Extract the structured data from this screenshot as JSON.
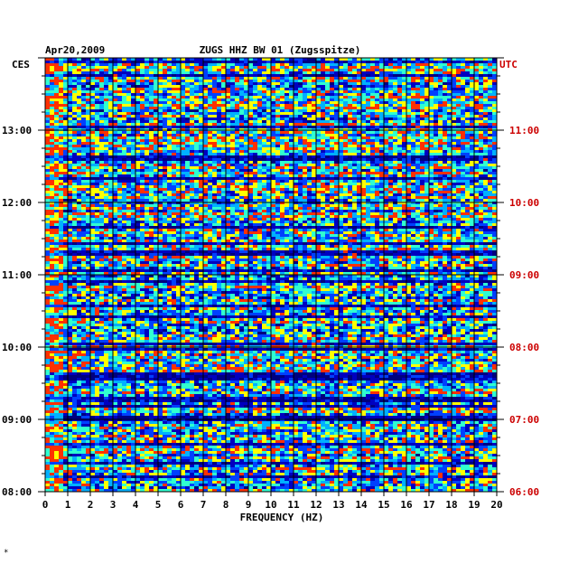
{
  "header": {
    "date": "Apr20,2009",
    "station": "ZUGS HHZ BW 01 (Zugsspitze)",
    "left_zone": "CES",
    "right_zone": "UTC"
  },
  "footer": {
    "mark": "*"
  },
  "colors": {
    "background": "#ffffff",
    "plot_base": "#00007f",
    "grid": "#000000",
    "left_axis_text": "#000000",
    "right_axis_text": "#cc0000",
    "colormap": [
      "#000070",
      "#0000c0",
      "#0040ff",
      "#00b0ff",
      "#30ffd0",
      "#ffff00",
      "#ff3000"
    ]
  },
  "chart_data": {
    "type": "heatmap",
    "title": "ZUGS HHZ BW 01 (Zugsspitze)",
    "xlabel": "FREQUENCY (HZ)",
    "xlim": [
      0,
      20
    ],
    "x_ticks": [
      "0",
      "1",
      "2",
      "3",
      "4",
      "5",
      "6",
      "7",
      "8",
      "9",
      "10",
      "11",
      "12",
      "13",
      "14",
      "15",
      "16",
      "17",
      "18",
      "19",
      "20"
    ],
    "y_time_range_ces": [
      "08:00",
      "14:00"
    ],
    "y_ticks_left": [
      {
        "value": 13,
        "label": "13:00"
      },
      {
        "value": 12,
        "label": "12:00"
      },
      {
        "value": 11,
        "label": "11:00"
      },
      {
        "value": 10,
        "label": "10:00"
      },
      {
        "value": 9,
        "label": "09:00"
      },
      {
        "value": 8,
        "label": "08:00"
      }
    ],
    "y_ticks_right": [
      {
        "value": 13,
        "label": "11:00"
      },
      {
        "value": 12,
        "label": "10:00"
      },
      {
        "value": 11,
        "label": "09:00"
      },
      {
        "value": 10,
        "label": "08:00"
      },
      {
        "value": 9,
        "label": "07:00"
      },
      {
        "value": 8,
        "label": "06:00"
      }
    ],
    "grid": true,
    "colormap": "blue-cyan-yellow-red (spectral amplitude)"
  }
}
